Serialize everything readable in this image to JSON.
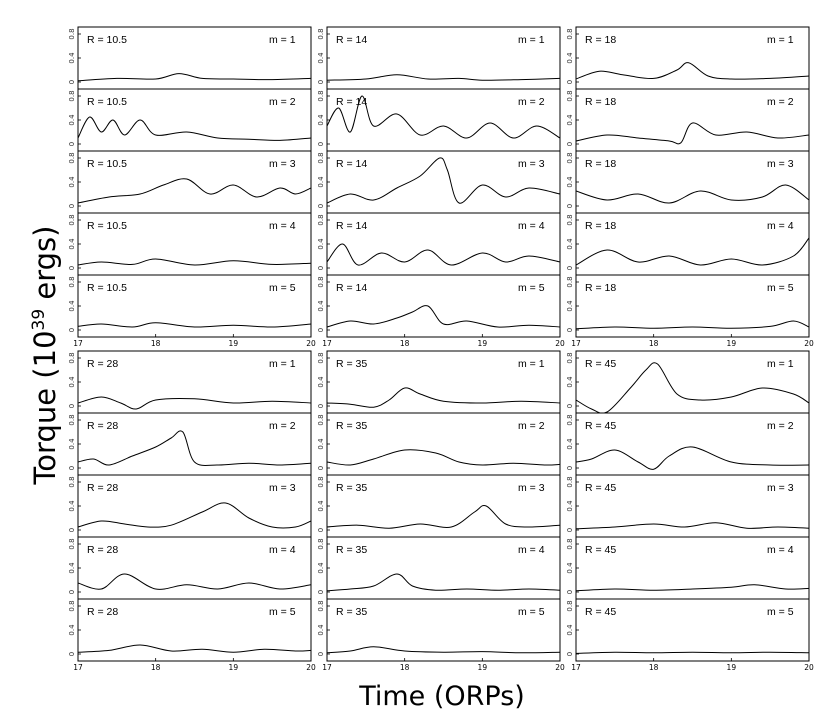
{
  "figure": {
    "ylabel": "Torque (10",
    "ylabel_exp": "39",
    "ylabel_unit": " ergs)",
    "xlabel": "Time (ORPs)"
  },
  "chart_data": {
    "type": "line",
    "xlabel": "Time (ORPs)",
    "ylabel": "Torque (10^39 ergs)",
    "xlim": [
      17,
      20
    ],
    "ylim": [
      0,
      0.8
    ],
    "xticks": [
      "17",
      "18",
      "19",
      "20"
    ],
    "yticks": [
      "0",
      "0.4",
      "0.8"
    ],
    "grid": false,
    "legend": "none",
    "panels": [
      {
        "R": "R = 10.5",
        "m": "m = 1",
        "x": [
          17,
          17.5,
          18,
          18.3,
          18.6,
          19,
          19.5,
          20
        ],
        "y": [
          0.02,
          0.06,
          0.05,
          0.14,
          0.06,
          0.05,
          0.04,
          0.06
        ]
      },
      {
        "R": "R = 10.5",
        "m": "m = 2",
        "x": [
          17,
          17.15,
          17.3,
          17.45,
          17.6,
          17.8,
          18,
          18.4,
          18.8,
          19.2,
          19.6,
          20
        ],
        "y": [
          0.1,
          0.45,
          0.2,
          0.4,
          0.15,
          0.4,
          0.15,
          0.2,
          0.1,
          0.08,
          0.06,
          0.1
        ]
      },
      {
        "R": "R = 10.5",
        "m": "m = 3",
        "x": [
          17,
          17.4,
          17.8,
          18.1,
          18.4,
          18.7,
          19,
          19.3,
          19.6,
          19.8,
          20
        ],
        "y": [
          0.05,
          0.15,
          0.2,
          0.35,
          0.45,
          0.2,
          0.35,
          0.15,
          0.3,
          0.2,
          0.3
        ]
      },
      {
        "R": "R = 10.5",
        "m": "m = 4",
        "x": [
          17,
          17.3,
          17.7,
          18,
          18.5,
          19,
          19.5,
          20
        ],
        "y": [
          0.05,
          0.1,
          0.06,
          0.15,
          0.05,
          0.12,
          0.06,
          0.08
        ]
      },
      {
        "R": "R = 10.5",
        "m": "m = 5",
        "x": [
          17,
          17.3,
          17.7,
          18,
          18.5,
          19,
          19.5,
          20
        ],
        "y": [
          0.06,
          0.1,
          0.05,
          0.12,
          0.05,
          0.08,
          0.05,
          0.1
        ]
      },
      {
        "R": "R = 14",
        "m": "m = 1",
        "x": [
          17,
          17.5,
          17.9,
          18.3,
          18.7,
          19,
          19.5,
          20
        ],
        "y": [
          0.03,
          0.05,
          0.12,
          0.05,
          0.06,
          0.03,
          0.04,
          0.06
        ]
      },
      {
        "R": "R = 14",
        "m": "m = 2",
        "x": [
          17,
          17.15,
          17.3,
          17.45,
          17.6,
          17.9,
          18.2,
          18.5,
          18.8,
          19.1,
          19.4,
          19.7,
          20
        ],
        "y": [
          0.3,
          0.6,
          0.2,
          0.8,
          0.3,
          0.5,
          0.15,
          0.3,
          0.1,
          0.35,
          0.1,
          0.3,
          0.1
        ]
      },
      {
        "R": "R = 14",
        "m": "m = 3",
        "x": [
          17,
          17.3,
          17.6,
          17.9,
          18.2,
          18.45,
          18.55,
          18.7,
          19,
          19.3,
          19.6,
          20
        ],
        "y": [
          0.05,
          0.2,
          0.1,
          0.3,
          0.5,
          0.8,
          0.6,
          0.05,
          0.35,
          0.15,
          0.3,
          0.2
        ]
      },
      {
        "R": "R = 14",
        "m": "m = 4",
        "x": [
          17,
          17.2,
          17.4,
          17.7,
          18,
          18.3,
          18.6,
          19,
          19.3,
          19.6,
          20
        ],
        "y": [
          0.1,
          0.4,
          0.05,
          0.25,
          0.1,
          0.3,
          0.05,
          0.25,
          0.1,
          0.2,
          0.1
        ]
      },
      {
        "R": "R = 14",
        "m": "m = 5",
        "x": [
          17,
          17.3,
          17.6,
          17.9,
          18.1,
          18.3,
          18.5,
          18.8,
          19.2,
          19.6,
          20
        ],
        "y": [
          0.05,
          0.15,
          0.1,
          0.2,
          0.3,
          0.4,
          0.1,
          0.15,
          0.05,
          0.08,
          0.05
        ]
      },
      {
        "R": "R = 18",
        "m": "m = 1",
        "x": [
          17,
          17.3,
          17.6,
          18,
          18.3,
          18.45,
          18.7,
          19,
          19.5,
          20
        ],
        "y": [
          0.05,
          0.18,
          0.12,
          0.06,
          0.2,
          0.32,
          0.1,
          0.05,
          0.06,
          0.1
        ]
      },
      {
        "R": "R = 18",
        "m": "m = 2",
        "x": [
          17,
          17.4,
          17.8,
          18.2,
          18.35,
          18.5,
          18.8,
          19.2,
          19.6,
          20
        ],
        "y": [
          0.05,
          0.15,
          0.1,
          0.05,
          0.02,
          0.35,
          0.15,
          0.2,
          0.1,
          0.15
        ]
      },
      {
        "R": "R = 18",
        "m": "m = 3",
        "x": [
          17,
          17.4,
          17.8,
          18.2,
          18.6,
          19,
          19.4,
          19.7,
          20
        ],
        "y": [
          0.25,
          0.1,
          0.2,
          0.05,
          0.25,
          0.1,
          0.15,
          0.35,
          0.1
        ]
      },
      {
        "R": "R = 18",
        "m": "m = 4",
        "x": [
          17,
          17.4,
          17.8,
          18.2,
          18.6,
          19,
          19.4,
          19.8,
          20
        ],
        "y": [
          0.05,
          0.3,
          0.1,
          0.2,
          0.05,
          0.15,
          0.05,
          0.2,
          0.5
        ]
      },
      {
        "R": "R = 18",
        "m": "m = 5",
        "x": [
          17,
          17.5,
          18,
          18.5,
          19,
          19.5,
          19.8,
          20
        ],
        "y": [
          0.02,
          0.05,
          0.03,
          0.05,
          0.03,
          0.06,
          0.15,
          0.05
        ]
      },
      {
        "R": "R = 28",
        "m": "m = 1",
        "x": [
          17,
          17.3,
          17.55,
          17.75,
          18,
          18.5,
          19,
          19.5,
          20
        ],
        "y": [
          0.05,
          0.15,
          0.05,
          -0.05,
          0.1,
          0.12,
          0.05,
          0.08,
          0.05
        ]
      },
      {
        "R": "R = 28",
        "m": "m = 2",
        "x": [
          17,
          17.2,
          17.4,
          17.7,
          18,
          18.2,
          18.35,
          18.5,
          18.8,
          19.2,
          19.6,
          20
        ],
        "y": [
          0.1,
          0.15,
          0.05,
          0.2,
          0.35,
          0.5,
          0.6,
          0.1,
          0.05,
          0.08,
          0.05,
          0.08
        ]
      },
      {
        "R": "R = 28",
        "m": "m = 3",
        "x": [
          17,
          17.3,
          17.6,
          17.9,
          18.2,
          18.6,
          18.9,
          19.2,
          19.5,
          19.8,
          20
        ],
        "y": [
          0.05,
          0.15,
          0.1,
          0.05,
          0.08,
          0.3,
          0.45,
          0.2,
          0.05,
          0.05,
          0.15
        ]
      },
      {
        "R": "R = 28",
        "m": "m = 4",
        "x": [
          17,
          17.3,
          17.6,
          18,
          18.4,
          18.8,
          19.2,
          19.6,
          20
        ],
        "y": [
          0.15,
          0.05,
          0.3,
          0.05,
          0.12,
          0.05,
          0.15,
          0.05,
          0.12
        ]
      },
      {
        "R": "R = 28",
        "m": "m = 5",
        "x": [
          17,
          17.4,
          17.8,
          18.2,
          18.6,
          19,
          19.4,
          19.8,
          20
        ],
        "y": [
          0.03,
          0.06,
          0.15,
          0.05,
          0.08,
          0.03,
          0.08,
          0.05,
          0.06
        ]
      },
      {
        "R": "R = 35",
        "m": "m = 1",
        "x": [
          17,
          17.3,
          17.6,
          17.8,
          18,
          18.2,
          18.5,
          19,
          19.5,
          20
        ],
        "y": [
          0.05,
          0.03,
          -0.02,
          0.1,
          0.3,
          0.2,
          0.08,
          0.05,
          0.08,
          0.05
        ]
      },
      {
        "R": "R = 35",
        "m": "m = 2",
        "x": [
          17,
          17.3,
          17.6,
          18,
          18.4,
          18.7,
          19,
          19.4,
          19.8,
          20
        ],
        "y": [
          0.1,
          0.05,
          0.15,
          0.3,
          0.25,
          0.1,
          0.05,
          0.08,
          0.05,
          0.06
        ]
      },
      {
        "R": "R = 35",
        "m": "m = 3",
        "x": [
          17,
          17.4,
          17.8,
          18.2,
          18.6,
          18.9,
          19.05,
          19.3,
          19.6,
          20
        ],
        "y": [
          0.05,
          0.08,
          0.03,
          0.1,
          0.05,
          0.3,
          0.4,
          0.1,
          0.05,
          0.08
        ]
      },
      {
        "R": "R = 35",
        "m": "m = 4",
        "x": [
          17,
          17.3,
          17.6,
          17.9,
          18.1,
          18.4,
          18.8,
          19.2,
          19.6,
          20
        ],
        "y": [
          0.02,
          0.05,
          0.1,
          0.3,
          0.1,
          0.03,
          0.05,
          0.03,
          0.05,
          0.03
        ]
      },
      {
        "R": "R = 35",
        "m": "m = 5",
        "x": [
          17,
          17.3,
          17.6,
          18,
          18.5,
          19,
          19.5,
          20
        ],
        "y": [
          0.02,
          0.05,
          0.12,
          0.05,
          0.03,
          0.04,
          0.02,
          0.03
        ]
      },
      {
        "R": "R = 45",
        "m": "m = 1",
        "x": [
          17,
          17.2,
          17.4,
          17.7,
          17.9,
          18.05,
          18.3,
          18.6,
          19,
          19.4,
          19.8,
          20
        ],
        "y": [
          0.1,
          -0.05,
          -0.1,
          0.3,
          0.6,
          0.7,
          0.2,
          0.1,
          0.15,
          0.3,
          0.2,
          0.05
        ]
      },
      {
        "R": "R = 45",
        "m": "m = 2",
        "x": [
          17,
          17.2,
          17.5,
          17.8,
          18,
          18.2,
          18.5,
          19,
          19.5,
          20
        ],
        "y": [
          0.1,
          0.15,
          0.3,
          0.1,
          -0.02,
          0.2,
          0.35,
          0.1,
          0.05,
          0.05
        ]
      },
      {
        "R": "R = 45",
        "m": "m = 3",
        "x": [
          17,
          17.5,
          18,
          18.4,
          18.8,
          19.2,
          19.6,
          20
        ],
        "y": [
          0.02,
          0.05,
          0.1,
          0.05,
          0.12,
          0.03,
          0.05,
          0.03
        ]
      },
      {
        "R": "R = 45",
        "m": "m = 4",
        "x": [
          17,
          17.5,
          18,
          18.5,
          19,
          19.3,
          19.7,
          20
        ],
        "y": [
          0.02,
          0.05,
          0.03,
          0.05,
          0.08,
          0.12,
          0.05,
          0.06
        ]
      },
      {
        "R": "R = 45",
        "m": "m = 5",
        "x": [
          17,
          17.5,
          18,
          18.5,
          19,
          19.5,
          20
        ],
        "y": [
          0.01,
          0.03,
          0.02,
          0.03,
          0.02,
          0.03,
          0.02
        ]
      }
    ]
  }
}
